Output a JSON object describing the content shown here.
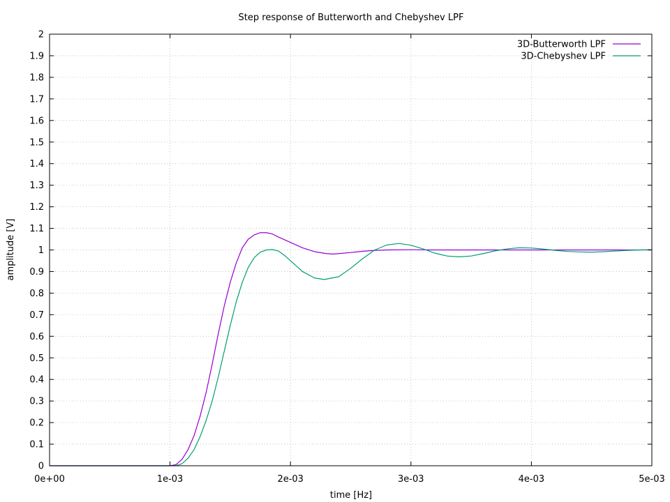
{
  "chart_data": {
    "type": "line",
    "title": "Step response of Butterworth and Chebyshev LPF",
    "xlabel": "time [Hz]",
    "ylabel": "amplitude [V]",
    "xlim": [
      0,
      0.005
    ],
    "ylim": [
      0,
      2
    ],
    "grid": true,
    "legend_position": "top-right",
    "x_ticks": [
      {
        "value": 0,
        "label": "0e+00"
      },
      {
        "value": 0.001,
        "label": "1e-03"
      },
      {
        "value": 0.002,
        "label": "2e-03"
      },
      {
        "value": 0.003,
        "label": "3e-03"
      },
      {
        "value": 0.004,
        "label": "4e-03"
      },
      {
        "value": 0.005,
        "label": "5e-03"
      }
    ],
    "y_ticks": [
      {
        "value": 0,
        "label": "0"
      },
      {
        "value": 0.1,
        "label": "0.1"
      },
      {
        "value": 0.2,
        "label": "0.2"
      },
      {
        "value": 0.3,
        "label": "0.3"
      },
      {
        "value": 0.4,
        "label": "0.4"
      },
      {
        "value": 0.5,
        "label": "0.5"
      },
      {
        "value": 0.6,
        "label": "0.6"
      },
      {
        "value": 0.7,
        "label": "0.7"
      },
      {
        "value": 0.8,
        "label": "0.8"
      },
      {
        "value": 0.9,
        "label": "0.9"
      },
      {
        "value": 1.0,
        "label": "1"
      },
      {
        "value": 1.1,
        "label": "1.1"
      },
      {
        "value": 1.2,
        "label": "1.2"
      },
      {
        "value": 1.3,
        "label": "1.3"
      },
      {
        "value": 1.4,
        "label": "1.4"
      },
      {
        "value": 1.5,
        "label": "1.5"
      },
      {
        "value": 1.6,
        "label": "1.6"
      },
      {
        "value": 1.7,
        "label": "1.7"
      },
      {
        "value": 1.8,
        "label": "1.8"
      },
      {
        "value": 1.9,
        "label": "1.9"
      },
      {
        "value": 2.0,
        "label": "2"
      }
    ],
    "series": [
      {
        "name": "3D-Butterworth LPF",
        "color": "#9400d3",
        "points": [
          [
            0,
            0
          ],
          [
            0.001,
            0
          ],
          [
            0.00105,
            0.005
          ],
          [
            0.0011,
            0.03
          ],
          [
            0.00115,
            0.075
          ],
          [
            0.0012,
            0.14
          ],
          [
            0.00125,
            0.23
          ],
          [
            0.0013,
            0.34
          ],
          [
            0.00135,
            0.47
          ],
          [
            0.0014,
            0.61
          ],
          [
            0.00145,
            0.74
          ],
          [
            0.0015,
            0.85
          ],
          [
            0.00155,
            0.94
          ],
          [
            0.0016,
            1.01
          ],
          [
            0.00165,
            1.05
          ],
          [
            0.0017,
            1.07
          ],
          [
            0.00175,
            1.08
          ],
          [
            0.0018,
            1.08
          ],
          [
            0.00185,
            1.074
          ],
          [
            0.0019,
            1.06
          ],
          [
            0.002,
            1.035
          ],
          [
            0.0021,
            1.01
          ],
          [
            0.0022,
            0.992
          ],
          [
            0.0023,
            0.983
          ],
          [
            0.00235,
            0.981
          ],
          [
            0.0024,
            0.983
          ],
          [
            0.0025,
            0.988
          ],
          [
            0.0026,
            0.994
          ],
          [
            0.0027,
            0.998
          ],
          [
            0.0028,
            1.0
          ],
          [
            0.003,
            1.001
          ],
          [
            0.0032,
            1.0
          ],
          [
            0.0035,
            1.0
          ],
          [
            0.004,
            1.0
          ],
          [
            0.0045,
            1.0
          ],
          [
            0.005,
            1.0
          ]
        ]
      },
      {
        "name": "3D-Chebyshev LPF",
        "color": "#009e73",
        "points": [
          [
            0,
            0
          ],
          [
            0.00105,
            0
          ],
          [
            0.0011,
            0.01
          ],
          [
            0.00115,
            0.035
          ],
          [
            0.0012,
            0.075
          ],
          [
            0.00125,
            0.135
          ],
          [
            0.0013,
            0.21
          ],
          [
            0.00135,
            0.3
          ],
          [
            0.0014,
            0.41
          ],
          [
            0.00145,
            0.53
          ],
          [
            0.0015,
            0.65
          ],
          [
            0.00155,
            0.76
          ],
          [
            0.0016,
            0.85
          ],
          [
            0.00165,
            0.92
          ],
          [
            0.0017,
            0.965
          ],
          [
            0.00175,
            0.99
          ],
          [
            0.0018,
            1.0
          ],
          [
            0.00185,
            1.002
          ],
          [
            0.0019,
            0.995
          ],
          [
            0.00195,
            0.975
          ],
          [
            0.002,
            0.95
          ],
          [
            0.0021,
            0.9
          ],
          [
            0.0022,
            0.87
          ],
          [
            0.00228,
            0.863
          ],
          [
            0.0024,
            0.876
          ],
          [
            0.0025,
            0.915
          ],
          [
            0.0026,
            0.96
          ],
          [
            0.0027,
            1.0
          ],
          [
            0.0028,
            1.023
          ],
          [
            0.0029,
            1.03
          ],
          [
            0.003,
            1.022
          ],
          [
            0.0031,
            1.005
          ],
          [
            0.0032,
            0.985
          ],
          [
            0.0033,
            0.972
          ],
          [
            0.0034,
            0.968
          ],
          [
            0.0035,
            0.972
          ],
          [
            0.0036,
            0.983
          ],
          [
            0.0037,
            0.996
          ],
          [
            0.0038,
            1.005
          ],
          [
            0.0039,
            1.01
          ],
          [
            0.004,
            1.009
          ],
          [
            0.0041,
            1.004
          ],
          [
            0.0042,
            0.998
          ],
          [
            0.0043,
            0.993
          ],
          [
            0.0044,
            0.991
          ],
          [
            0.0045,
            0.99
          ],
          [
            0.0046,
            0.992
          ],
          [
            0.0047,
            0.995
          ],
          [
            0.0048,
            0.998
          ],
          [
            0.0049,
            1.0
          ],
          [
            0.005,
            1.001
          ]
        ]
      }
    ]
  }
}
